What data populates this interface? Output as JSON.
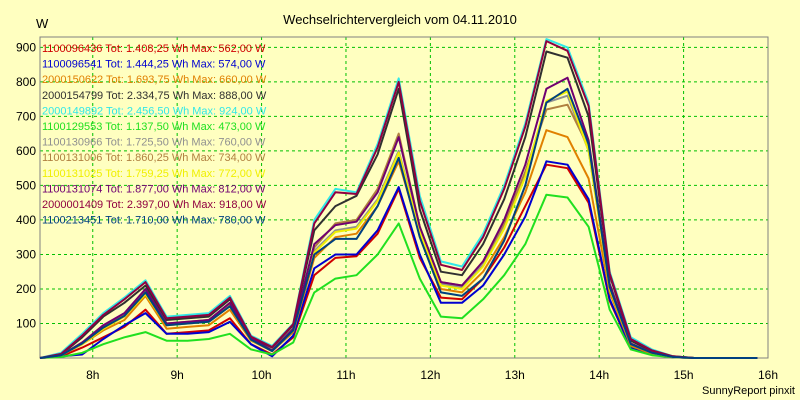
{
  "chart_data": {
    "type": "line",
    "title": "Wechselrichtervergleich vom 04.11.2010",
    "y_unit": "W",
    "credit": "SunnyReport pinxit",
    "x_ticks": [
      "8h",
      "9h",
      "10h",
      "11h",
      "12h",
      "13h",
      "14h",
      "15h",
      "16h"
    ],
    "y_ticks": [
      100,
      200,
      300,
      400,
      500,
      600,
      700,
      800,
      900
    ],
    "xlim": [
      7.375,
      16.0
    ],
    "ylim": [
      0,
      930
    ],
    "grid": true,
    "legend_position": "top-left",
    "x": [
      7.375,
      7.625,
      7.875,
      8.125,
      8.375,
      8.625,
      8.875,
      9.125,
      9.375,
      9.625,
      9.875,
      10.125,
      10.375,
      10.625,
      10.875,
      11.125,
      11.375,
      11.625,
      11.875,
      12.125,
      12.375,
      12.625,
      12.875,
      13.125,
      13.375,
      13.625,
      13.875,
      14.125,
      14.375,
      14.625,
      14.875,
      15.125,
      15.375,
      15.625,
      15.875
    ],
    "series": [
      {
        "legend": "1100096436 Tot: 1.408,25 Wh Max: 562,00 W",
        "color": "#d00000",
        "values": [
          0,
          5,
          30,
          60,
          90,
          140,
          70,
          75,
          80,
          115,
          40,
          10,
          60,
          240,
          290,
          295,
          360,
          490,
          290,
          175,
          170,
          230,
          320,
          440,
          560,
          550,
          450,
          165,
          30,
          10,
          2,
          0,
          0,
          0,
          0
        ]
      },
      {
        "legend": "1100096541 Tot: 1.444,25 Wh Max: 574,00 W",
        "color": "#0000d0",
        "values": [
          0,
          5,
          10,
          55,
          95,
          130,
          70,
          70,
          75,
          105,
          40,
          5,
          65,
          260,
          300,
          300,
          370,
          495,
          300,
          160,
          160,
          210,
          300,
          410,
          570,
          560,
          460,
          170,
          30,
          10,
          2,
          0,
          0,
          0,
          0
        ]
      },
      {
        "legend": "2000150622 Tot: 1.693,75 Wh Max: 660,00 W",
        "color": "#e08000",
        "values": [
          0,
          8,
          40,
          80,
          110,
          180,
          85,
          90,
          95,
          140,
          50,
          20,
          75,
          290,
          350,
          360,
          440,
          570,
          360,
          200,
          190,
          250,
          350,
          480,
          660,
          640,
          520,
          190,
          35,
          12,
          3,
          0,
          0,
          0,
          0
        ]
      },
      {
        "legend": "2000154799 Tot: 2.334,75 Wh Max: 888,00 W",
        "color": "#303030",
        "values": [
          0,
          10,
          60,
          120,
          160,
          210,
          110,
          115,
          120,
          170,
          60,
          30,
          95,
          370,
          440,
          470,
          590,
          780,
          430,
          250,
          240,
          330,
          460,
          640,
          888,
          870,
          700,
          240,
          50,
          20,
          5,
          0,
          0,
          0,
          0
        ]
      },
      {
        "legend": "2000149892 Tot: 2.456,50 Wh Max: 924,00 W",
        "color": "#30e8e8",
        "values": [
          0,
          15,
          70,
          130,
          175,
          225,
          120,
          125,
          130,
          180,
          65,
          35,
          100,
          400,
          490,
          480,
          620,
          810,
          470,
          280,
          265,
          360,
          500,
          680,
          924,
          900,
          740,
          250,
          60,
          25,
          5,
          0,
          0,
          0,
          0
        ]
      },
      {
        "legend": "1100129553 Tot: 1.137,50 Wh Max: 473,00 W",
        "color": "#20e020",
        "values": [
          0,
          3,
          15,
          40,
          60,
          75,
          50,
          50,
          55,
          70,
          25,
          10,
          45,
          190,
          230,
          240,
          300,
          390,
          230,
          120,
          115,
          170,
          240,
          330,
          473,
          465,
          380,
          140,
          25,
          8,
          2,
          0,
          0,
          0,
          0
        ]
      },
      {
        "legend": "1100130966 Tot: 1.725,50 Wh Max: 760,00 W",
        "color": "#909090",
        "values": [
          0,
          8,
          45,
          90,
          120,
          190,
          95,
          100,
          105,
          150,
          55,
          20,
          80,
          310,
          370,
          380,
          460,
          600,
          370,
          215,
          205,
          270,
          380,
          530,
          740,
          760,
          600,
          205,
          40,
          15,
          3,
          0,
          0,
          0,
          0
        ]
      },
      {
        "legend": "1100131006 Tot: 1.860,25 Wh Max: 734,00 W",
        "color": "#b08040",
        "values": [
          0,
          8,
          45,
          90,
          125,
          195,
          100,
          105,
          110,
          155,
          55,
          22,
          85,
          320,
          390,
          400,
          490,
          650,
          380,
          220,
          210,
          280,
          390,
          540,
          720,
          734,
          610,
          210,
          42,
          16,
          4,
          0,
          0,
          0,
          0
        ]
      },
      {
        "legend": "1100131025 Tot: 1.759,25 Wh Max: 772,00 W",
        "color": "#f0f000",
        "values": [
          0,
          8,
          40,
          85,
          120,
          185,
          95,
          100,
          105,
          150,
          52,
          20,
          80,
          305,
          365,
          375,
          455,
          595,
          365,
          210,
          200,
          265,
          375,
          525,
          745,
          772,
          600,
          200,
          40,
          15,
          3,
          0,
          0,
          0,
          0
        ]
      },
      {
        "legend": "1100131074 Tot: 1.877,00 Wh Max: 812,00 W",
        "color": "#700070",
        "values": [
          0,
          8,
          45,
          95,
          130,
          200,
          100,
          105,
          110,
          160,
          58,
          22,
          85,
          330,
          385,
          395,
          480,
          640,
          380,
          220,
          210,
          280,
          400,
          560,
          780,
          812,
          630,
          215,
          42,
          16,
          4,
          0,
          0,
          0,
          0
        ]
      },
      {
        "legend": "2000001409 Tot: 2.397,00 Wh Max: 918,00 W",
        "color": "#900040",
        "values": [
          0,
          12,
          65,
          125,
          170,
          220,
          115,
          120,
          125,
          175,
          62,
          32,
          98,
          390,
          480,
          475,
          610,
          800,
          455,
          270,
          255,
          350,
          490,
          670,
          918,
          890,
          730,
          245,
          55,
          22,
          5,
          0,
          0,
          0,
          0
        ]
      },
      {
        "legend": "1100213451 Tot: 1.710,00 Wh Max: 780,00 W",
        "color": "#004080",
        "values": [
          0,
          8,
          42,
          88,
          122,
          190,
          95,
          100,
          105,
          150,
          53,
          20,
          80,
          300,
          345,
          345,
          440,
          580,
          350,
          190,
          180,
          230,
          340,
          500,
          740,
          780,
          620,
          205,
          40,
          15,
          3,
          0,
          0,
          0,
          0
        ]
      }
    ]
  }
}
